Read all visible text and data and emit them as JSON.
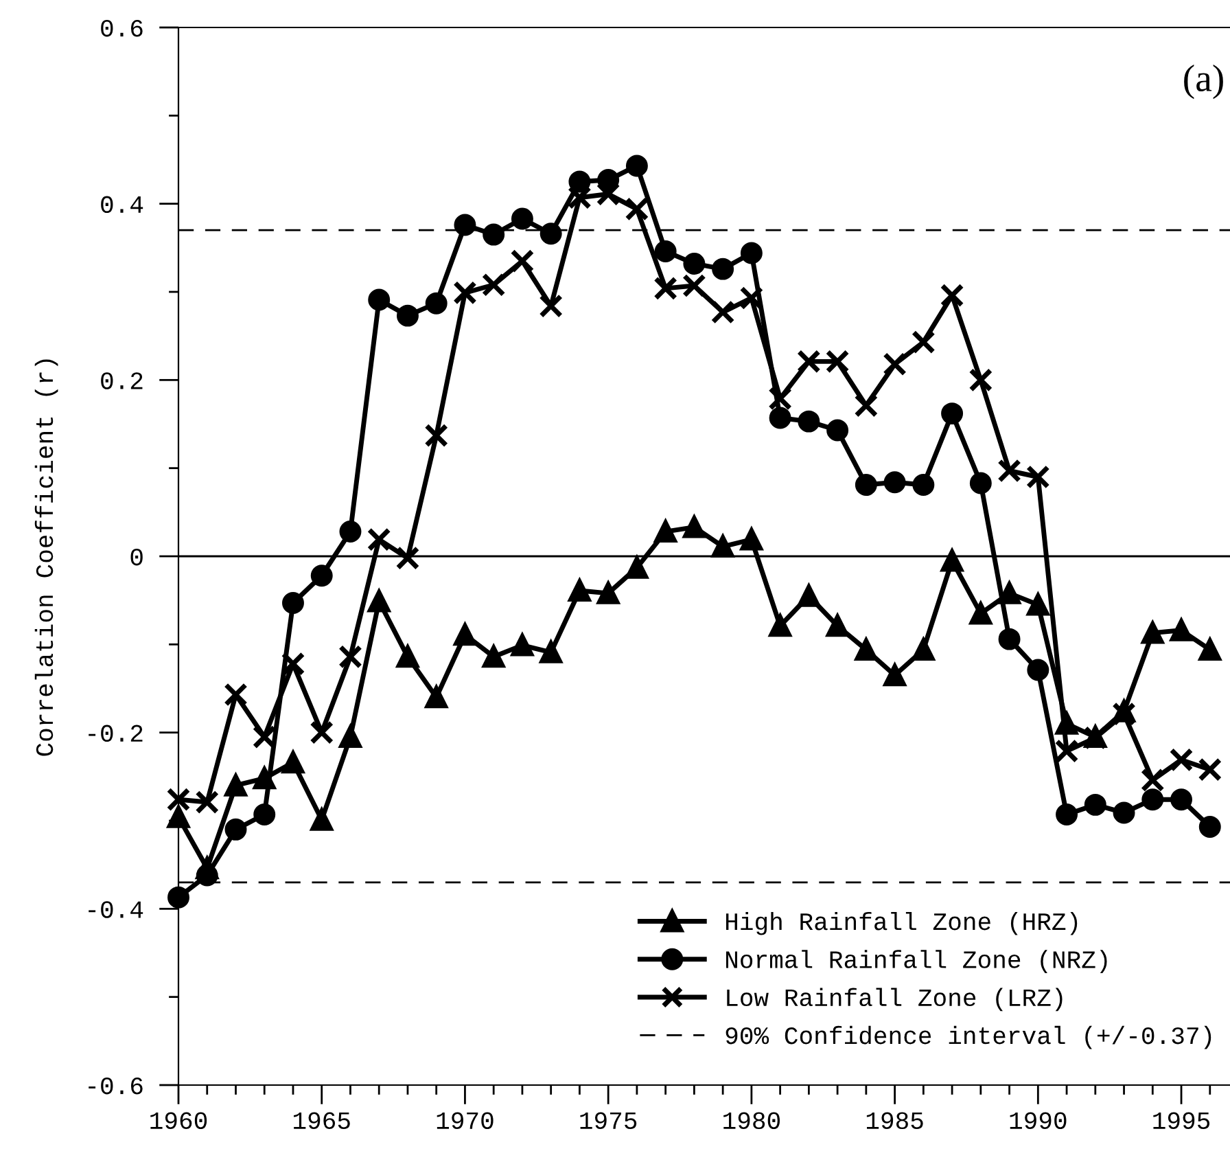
{
  "chart_data": {
    "type": "line",
    "ylabel": "Correlation Coefficient (r)",
    "annotations": [
      "(a)"
    ],
    "x": [
      1960,
      1961,
      1962,
      1963,
      1964,
      1965,
      1966,
      1967,
      1968,
      1969,
      1970,
      1971,
      1972,
      1973,
      1974,
      1975,
      1976,
      1977,
      1978,
      1979,
      1980,
      1981,
      1982,
      1983,
      1984,
      1985,
      1986,
      1987,
      1988,
      1989,
      1990,
      1991,
      1992,
      1993,
      1994,
      1995,
      1996
    ],
    "xlim": [
      1960,
      1996.7
    ],
    "xticks": [
      1960,
      1965,
      1970,
      1975,
      1980,
      1985,
      1990,
      1995
    ],
    "ylim": [
      -0.6,
      0.6
    ],
    "yticks": [
      -0.6,
      -0.4,
      -0.2,
      0,
      0.2,
      0.4,
      0.6
    ],
    "series": [
      {
        "name": "High Rainfall Zone (HRZ)",
        "color": "#000000",
        "marker": "triangle",
        "values": [
          -0.296,
          -0.354,
          -0.26,
          -0.252,
          -0.234,
          -0.299,
          -0.205,
          -0.051,
          -0.114,
          -0.16,
          -0.089,
          -0.114,
          -0.101,
          -0.109,
          -0.039,
          -0.042,
          -0.013,
          0.028,
          0.033,
          0.011,
          0.019,
          -0.079,
          -0.045,
          -0.079,
          -0.106,
          -0.135,
          -0.106,
          -0.005,
          -0.065,
          -0.042,
          -0.055,
          -0.19,
          -0.205,
          -0.176,
          -0.087,
          -0.084,
          -0.106
        ]
      },
      {
        "name": "Normal Rainfall Zone (NRZ)",
        "color": "#000000",
        "marker": "circle",
        "values": [
          -0.387,
          -0.362,
          -0.31,
          -0.293,
          -0.053,
          -0.022,
          0.028,
          0.291,
          0.273,
          0.287,
          0.376,
          0.365,
          0.383,
          0.366,
          0.425,
          0.427,
          0.443,
          0.346,
          0.332,
          0.326,
          0.344,
          0.157,
          0.153,
          0.143,
          0.081,
          0.084,
          0.081,
          0.162,
          0.083,
          -0.094,
          -0.129,
          -0.293,
          -0.282,
          -0.291,
          -0.276,
          -0.276,
          -0.307
        ]
      },
      {
        "name": "Low Rainfall Zone (LRZ)",
        "color": "#000000",
        "marker": "cross",
        "values": [
          -0.276,
          -0.279,
          -0.157,
          -0.205,
          -0.122,
          -0.2,
          -0.114,
          0.019,
          -0.002,
          0.137,
          0.299,
          0.308,
          0.335,
          0.284,
          0.407,
          0.411,
          0.394,
          0.304,
          0.307,
          0.277,
          0.293,
          0.179,
          0.221,
          0.221,
          0.171,
          0.218,
          0.243,
          0.296,
          0.2,
          0.097,
          0.09,
          -0.221,
          -0.206,
          -0.179,
          -0.254,
          -0.231,
          -0.242
        ]
      }
    ],
    "ref_lines": [
      {
        "axis": "y",
        "value": 0.37,
        "label": "90% Confidence interval (+/-0.37)",
        "line_style": "dashed",
        "color": "#000000"
      },
      {
        "axis": "y",
        "value": -0.37,
        "line_style": "dashed",
        "color": "#000000"
      },
      {
        "axis": "y",
        "value": 0,
        "line_style": "solid",
        "color": "#000000"
      }
    ],
    "line_style": "solid",
    "legend": "bottom right",
    "grid": false
  }
}
